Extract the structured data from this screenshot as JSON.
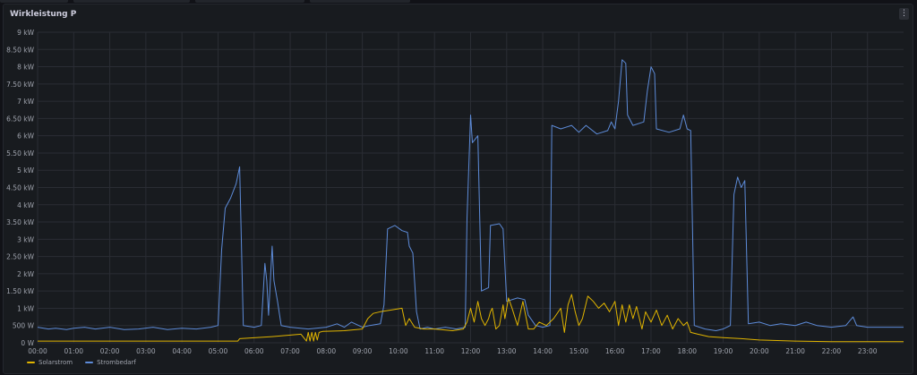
{
  "panel": {
    "title": "Wirkleistung P",
    "menu_icon": "kebab-menu-icon",
    "menu_glyph": "⋮"
  },
  "colors": {
    "background": "#111217",
    "panel": "#181b1f",
    "grid": "#2a2d34",
    "solar": "#e0b400",
    "demand": "#5d8bd8"
  },
  "chart_data": {
    "type": "line",
    "title": "Wirkleistung P",
    "xlabel": "",
    "ylabel": "",
    "x_unit": "hour of day",
    "x_ticks": [
      "00:00",
      "01:00",
      "02:00",
      "03:00",
      "04:00",
      "05:00",
      "06:00",
      "07:00",
      "08:00",
      "09:00",
      "10:00",
      "11:00",
      "12:00",
      "13:00",
      "14:00",
      "15:00",
      "16:00",
      "17:00",
      "18:00",
      "19:00",
      "20:00",
      "21:00",
      "22:00",
      "23:00"
    ],
    "y_ticks": [
      "0 W",
      "500 W",
      "1 kW",
      "1.50 kW",
      "2 kW",
      "2.50 kW",
      "3 kW",
      "3.50 kW",
      "4 kW",
      "4.50 kW",
      "5 kW",
      "5.50 kW",
      "6 kW",
      "6.50 kW",
      "7 kW",
      "7.50 kW",
      "8 kW",
      "8.50 kW",
      "9 kW"
    ],
    "xlim": [
      0,
      24
    ],
    "ylim": [
      0,
      9
    ],
    "y_unit": "kW",
    "grid": true,
    "legend_position": "bottom-left",
    "series": [
      {
        "name": "Solarstrom",
        "color": "#e0b400",
        "points": [
          [
            0,
            0.05
          ],
          [
            5.55,
            0.05
          ],
          [
            5.6,
            0.12
          ],
          [
            6.5,
            0.18
          ],
          [
            7.3,
            0.25
          ],
          [
            7.45,
            0.05
          ],
          [
            7.5,
            0.3
          ],
          [
            7.55,
            0.05
          ],
          [
            7.6,
            0.3
          ],
          [
            7.65,
            0.05
          ],
          [
            7.7,
            0.3
          ],
          [
            7.75,
            0.08
          ],
          [
            7.8,
            0.3
          ],
          [
            7.9,
            0.33
          ],
          [
            8.5,
            0.35
          ],
          [
            9.0,
            0.4
          ],
          [
            9.15,
            0.7
          ],
          [
            9.3,
            0.85
          ],
          [
            9.5,
            0.9
          ],
          [
            9.8,
            0.95
          ],
          [
            10.1,
            1.0
          ],
          [
            10.2,
            0.5
          ],
          [
            10.3,
            0.7
          ],
          [
            10.45,
            0.45
          ],
          [
            10.7,
            0.4
          ],
          [
            11.0,
            0.4
          ],
          [
            11.5,
            0.35
          ],
          [
            11.8,
            0.4
          ],
          [
            11.9,
            0.6
          ],
          [
            12.0,
            1.0
          ],
          [
            12.1,
            0.6
          ],
          [
            12.2,
            1.2
          ],
          [
            12.3,
            0.7
          ],
          [
            12.4,
            0.5
          ],
          [
            12.5,
            0.7
          ],
          [
            12.55,
            0.9
          ],
          [
            12.6,
            1.0
          ],
          [
            12.7,
            0.4
          ],
          [
            12.8,
            0.5
          ],
          [
            12.9,
            1.1
          ],
          [
            12.95,
            0.7
          ],
          [
            13.05,
            1.3
          ],
          [
            13.15,
            1.0
          ],
          [
            13.3,
            0.5
          ],
          [
            13.45,
            1.2
          ],
          [
            13.6,
            0.4
          ],
          [
            13.75,
            0.4
          ],
          [
            13.9,
            0.6
          ],
          [
            14.1,
            0.5
          ],
          [
            14.3,
            0.7
          ],
          [
            14.5,
            1.0
          ],
          [
            14.6,
            0.3
          ],
          [
            14.7,
            1.1
          ],
          [
            14.8,
            1.4
          ],
          [
            14.9,
            0.9
          ],
          [
            15.0,
            0.5
          ],
          [
            15.1,
            0.7
          ],
          [
            15.25,
            1.35
          ],
          [
            15.4,
            1.2
          ],
          [
            15.55,
            1.0
          ],
          [
            15.7,
            1.15
          ],
          [
            15.85,
            0.9
          ],
          [
            16.0,
            1.2
          ],
          [
            16.1,
            0.5
          ],
          [
            16.2,
            1.1
          ],
          [
            16.3,
            0.6
          ],
          [
            16.4,
            1.1
          ],
          [
            16.5,
            0.7
          ],
          [
            16.6,
            1.05
          ],
          [
            16.75,
            0.4
          ],
          [
            16.85,
            0.9
          ],
          [
            17.0,
            0.6
          ],
          [
            17.15,
            0.95
          ],
          [
            17.3,
            0.5
          ],
          [
            17.45,
            0.8
          ],
          [
            17.6,
            0.4
          ],
          [
            17.75,
            0.7
          ],
          [
            17.9,
            0.5
          ],
          [
            18.0,
            0.6
          ],
          [
            18.1,
            0.3
          ],
          [
            18.3,
            0.25
          ],
          [
            18.6,
            0.18
          ],
          [
            19.0,
            0.15
          ],
          [
            19.5,
            0.12
          ],
          [
            20.0,
            0.08
          ],
          [
            21.0,
            0.05
          ],
          [
            22.0,
            0.03
          ],
          [
            24.0,
            0.03
          ]
        ]
      },
      {
        "name": "Strombedarf",
        "color": "#5d8bd8",
        "points": [
          [
            0,
            0.45
          ],
          [
            0.3,
            0.4
          ],
          [
            0.5,
            0.42
          ],
          [
            0.8,
            0.38
          ],
          [
            1.0,
            0.42
          ],
          [
            1.3,
            0.45
          ],
          [
            1.6,
            0.4
          ],
          [
            2.0,
            0.45
          ],
          [
            2.4,
            0.38
          ],
          [
            2.8,
            0.4
          ],
          [
            3.2,
            0.45
          ],
          [
            3.6,
            0.38
          ],
          [
            4.0,
            0.42
          ],
          [
            4.4,
            0.4
          ],
          [
            4.8,
            0.45
          ],
          [
            5.0,
            0.5
          ],
          [
            5.1,
            2.7
          ],
          [
            5.2,
            3.9
          ],
          [
            5.35,
            4.2
          ],
          [
            5.5,
            4.6
          ],
          [
            5.6,
            5.1
          ],
          [
            5.7,
            0.5
          ],
          [
            6.0,
            0.45
          ],
          [
            6.2,
            0.5
          ],
          [
            6.3,
            2.3
          ],
          [
            6.35,
            1.8
          ],
          [
            6.4,
            0.8
          ],
          [
            6.5,
            2.8
          ],
          [
            6.55,
            1.8
          ],
          [
            6.65,
            1.2
          ],
          [
            6.75,
            0.5
          ],
          [
            7.0,
            0.45
          ],
          [
            7.5,
            0.4
          ],
          [
            8.0,
            0.45
          ],
          [
            8.3,
            0.55
          ],
          [
            8.5,
            0.45
          ],
          [
            8.7,
            0.6
          ],
          [
            9.0,
            0.45
          ],
          [
            9.2,
            0.5
          ],
          [
            9.5,
            0.55
          ],
          [
            9.6,
            1.1
          ],
          [
            9.7,
            3.3
          ],
          [
            9.9,
            3.4
          ],
          [
            10.1,
            3.25
          ],
          [
            10.25,
            3.2
          ],
          [
            10.3,
            2.8
          ],
          [
            10.4,
            2.6
          ],
          [
            10.5,
            0.9
          ],
          [
            10.6,
            0.4
          ],
          [
            10.8,
            0.45
          ],
          [
            11.0,
            0.4
          ],
          [
            11.3,
            0.45
          ],
          [
            11.6,
            0.4
          ],
          [
            11.85,
            0.45
          ],
          [
            11.9,
            3.6
          ],
          [
            12.0,
            6.6
          ],
          [
            12.05,
            5.8
          ],
          [
            12.2,
            6.0
          ],
          [
            12.3,
            1.5
          ],
          [
            12.5,
            1.6
          ],
          [
            12.55,
            3.4
          ],
          [
            12.8,
            3.45
          ],
          [
            12.9,
            3.3
          ],
          [
            13.0,
            1.2
          ],
          [
            13.3,
            1.3
          ],
          [
            13.5,
            1.25
          ],
          [
            13.6,
            0.8
          ],
          [
            13.8,
            0.5
          ],
          [
            14.0,
            0.45
          ],
          [
            14.2,
            0.5
          ],
          [
            14.25,
            6.3
          ],
          [
            14.5,
            6.2
          ],
          [
            14.8,
            6.3
          ],
          [
            15.0,
            6.1
          ],
          [
            15.2,
            6.3
          ],
          [
            15.5,
            6.05
          ],
          [
            15.8,
            6.15
          ],
          [
            15.9,
            6.4
          ],
          [
            16.0,
            6.2
          ],
          [
            16.1,
            7.0
          ],
          [
            16.2,
            8.2
          ],
          [
            16.3,
            8.1
          ],
          [
            16.35,
            6.6
          ],
          [
            16.5,
            6.3
          ],
          [
            16.8,
            6.4
          ],
          [
            16.9,
            7.3
          ],
          [
            17.0,
            8.0
          ],
          [
            17.1,
            7.8
          ],
          [
            17.15,
            6.2
          ],
          [
            17.5,
            6.1
          ],
          [
            17.8,
            6.2
          ],
          [
            17.9,
            6.6
          ],
          [
            18.0,
            6.2
          ],
          [
            18.1,
            6.15
          ],
          [
            18.2,
            0.5
          ],
          [
            18.5,
            0.4
          ],
          [
            18.8,
            0.35
          ],
          [
            19.0,
            0.4
          ],
          [
            19.2,
            0.5
          ],
          [
            19.3,
            4.3
          ],
          [
            19.4,
            4.8
          ],
          [
            19.5,
            4.5
          ],
          [
            19.6,
            4.7
          ],
          [
            19.7,
            0.55
          ],
          [
            20.0,
            0.6
          ],
          [
            20.3,
            0.5
          ],
          [
            20.6,
            0.55
          ],
          [
            21.0,
            0.5
          ],
          [
            21.3,
            0.6
          ],
          [
            21.6,
            0.5
          ],
          [
            22.0,
            0.45
          ],
          [
            22.4,
            0.5
          ],
          [
            22.6,
            0.75
          ],
          [
            22.7,
            0.5
          ],
          [
            23.0,
            0.45
          ],
          [
            23.5,
            0.45
          ],
          [
            24.0,
            0.45
          ]
        ]
      }
    ]
  }
}
